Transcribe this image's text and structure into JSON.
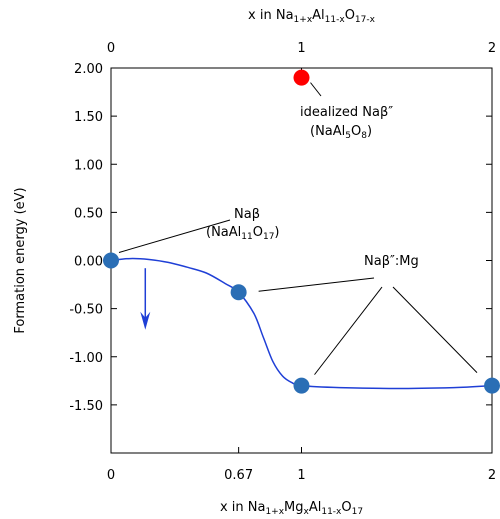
{
  "chart_data": {
    "type": "scatter",
    "ylabel": "Formation energy (eV)",
    "xlim": [
      0,
      2
    ],
    "ylim": [
      -2.0,
      2.0
    ],
    "top_axis": {
      "label_parts": [
        "x in Na",
        "1+x",
        "Al",
        "11-x",
        "O",
        "17-x"
      ],
      "ticks": [
        0,
        1,
        2
      ],
      "tick_labels": [
        "0",
        "1",
        "2"
      ]
    },
    "bottom_axis": {
      "label_parts": [
        "x in Na",
        "1+x",
        "Mg",
        "x",
        "Al",
        "11-x",
        "O",
        "17"
      ],
      "ticks": [
        0,
        0.67,
        1,
        2
      ],
      "tick_labels": [
        "0",
        "0.67",
        "1",
        "2"
      ]
    },
    "yticks": [
      2.0,
      1.5,
      1.0,
      0.5,
      0.0,
      -0.5,
      -1.0,
      -1.5
    ],
    "ytick_labels": [
      "2.00",
      "1.50",
      "1.00",
      "0.50",
      "0.00",
      "-0.50",
      "-1.00",
      "-1.50"
    ],
    "series": [
      {
        "points": [
          {
            "x": 0,
            "y": 0.0
          },
          {
            "x": 0.67,
            "y": -0.33
          },
          {
            "x": 1,
            "y": -1.3
          },
          {
            "x": 2,
            "y": -1.3
          }
        ],
        "color": "#2a6eb5"
      },
      {
        "points": [
          {
            "x": 1,
            "y": 1.9
          }
        ],
        "color": "#ff0000"
      }
    ],
    "fit_curve": {
      "color": "#1f3fd6",
      "points": [
        [
          0,
          0.0
        ],
        [
          0.1,
          0.02
        ],
        [
          0.2,
          0.01
        ],
        [
          0.3,
          -0.02
        ],
        [
          0.4,
          -0.07
        ],
        [
          0.5,
          -0.13
        ],
        [
          0.6,
          -0.24
        ],
        [
          0.67,
          -0.33
        ],
        [
          0.75,
          -0.55
        ],
        [
          0.8,
          -0.8
        ],
        [
          0.85,
          -1.05
        ],
        [
          0.9,
          -1.2
        ],
        [
          0.95,
          -1.27
        ],
        [
          1.0,
          -1.3
        ],
        [
          1.2,
          -1.32
        ],
        [
          1.5,
          -1.33
        ],
        [
          1.8,
          -1.32
        ],
        [
          2.0,
          -1.3
        ]
      ]
    },
    "arrow": {
      "x": 0.18,
      "y_from": -0.08,
      "y_to": -0.72,
      "color": "#1f3fd6"
    },
    "annotations": [
      {
        "lines": [
          {
            "parts": [
              "idealized Naβ″"
            ]
          },
          {
            "parts": [
              "(NaAl",
              "5",
              "O",
              "8",
              ")"
            ]
          }
        ]
      },
      {
        "lines": [
          {
            "parts": [
              "Naβ"
            ]
          },
          {
            "parts": [
              "(NaAl",
              "11",
              "O",
              "17",
              ")"
            ]
          }
        ]
      },
      {
        "lines": [
          {
            "parts": [
              "Naβ″:Mg"
            ]
          }
        ]
      }
    ]
  }
}
